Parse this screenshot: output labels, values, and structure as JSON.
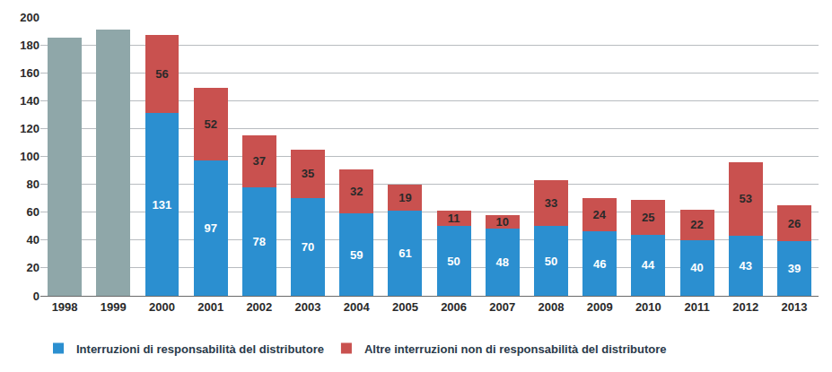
{
  "chart_data": {
    "type": "bar",
    "stacked": true,
    "data_labels": true,
    "grid": true,
    "legend": "bottom",
    "categories": [
      "1998",
      "1999",
      "2000",
      "2001",
      "2002",
      "2003",
      "2004",
      "2005",
      "2006",
      "2007",
      "2008",
      "2009",
      "2010",
      "2011",
      "2012",
      "2013"
    ],
    "ylim": [
      0,
      200
    ],
    "yticks": [
      0,
      20,
      40,
      60,
      80,
      100,
      120,
      140,
      160,
      180,
      200
    ],
    "series": [
      {
        "color": "#8fa7a9",
        "data_labels": false,
        "values": [
          185,
          191,
          null,
          null,
          null,
          null,
          null,
          null,
          null,
          null,
          null,
          null,
          null,
          null,
          null,
          null
        ]
      },
      {
        "name": "Interruzioni di responsabilità del distributore",
        "color": "#2b8fd0",
        "values": [
          null,
          null,
          131,
          97,
          78,
          70,
          59,
          61,
          50,
          48,
          50,
          46,
          44,
          40,
          43,
          39
        ]
      },
      {
        "name": "Altre interruzioni non di responsabilità del distributore",
        "color": "#c9514f",
        "values": [
          null,
          null,
          56,
          52,
          37,
          35,
          32,
          19,
          11,
          10,
          33,
          24,
          25,
          22,
          53,
          26
        ]
      }
    ]
  }
}
